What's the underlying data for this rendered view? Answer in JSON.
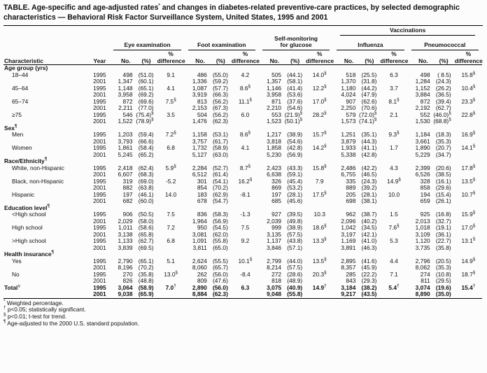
{
  "title": "TABLE. Age-specific and age-adjusted rates* and changes in diabetes-related preventive-care practices, by selected demographic characteristics — Behavioral Risk Factor Surveillance System, United States, 1995 and 2001",
  "header": {
    "characteristic": "Characteristic",
    "year": "Year",
    "no": "No.",
    "pct": "(%)",
    "pct_word": "%",
    "difference": "difference",
    "vaccinations": "Vaccinations",
    "groups": [
      "Eye examination",
      "Foot examination",
      "Self-monitoring\nfor glucose",
      "Influenza",
      "Pneumococcal"
    ]
  },
  "years": [
    "1995",
    "2001"
  ],
  "sections": [
    {
      "header": "Age group (yrs)",
      "rows": [
        {
          "label": "18–44",
          "bold": false,
          "y1995": [
            "498",
            "(51.0)",
            "9.1",
            "486",
            "(55.0)",
            "4.2",
            "505",
            "(44.1)",
            "14.0§",
            "518",
            "(25.5)",
            "6.3",
            "498",
            "( 8.5)",
            "15.8§"
          ],
          "y2001": [
            "1,347",
            "(60.1)",
            "",
            "1,336",
            "(59.2)",
            "",
            "1,357",
            "(58.1)",
            "",
            "1,370",
            "(31.8)",
            "",
            "1,284",
            "(24.3)",
            ""
          ]
        },
        {
          "label": "45–64",
          "bold": false,
          "y1995": [
            "1,148",
            "(65.1)",
            "4.1",
            "1,087",
            "(57.7)",
            "8.6§",
            "1,146",
            "(41.4)",
            "12.2§",
            "1,180",
            "(44.2)",
            "3.7",
            "1,152",
            "(26.2)",
            "10.4§"
          ],
          "y2001": [
            "3,958",
            "(69.2)",
            "",
            "3,919",
            "(66.3)",
            "",
            "3,958",
            "(53.6)",
            "",
            "4,024",
            "(47.9)",
            "",
            "3,884",
            "(36.5)",
            ""
          ]
        },
        {
          "label": "65–74",
          "bold": false,
          "y1995": [
            "872",
            "(69.6)",
            "7.5§",
            "813",
            "(56.2)",
            "11.1§",
            "871",
            "(37.6)",
            "17.0§",
            "907",
            "(62.6)",
            "8.1§",
            "872",
            "(39.4)",
            "23.3§"
          ],
          "y2001": [
            "2,211",
            "(77.0)",
            "",
            "2,153",
            "(67.3)",
            "",
            "2,210",
            "(54.6)",
            "",
            "2,250",
            "(70.6)",
            "",
            "2,192",
            "(62.7)",
            ""
          ]
        },
        {
          "label": "≥75",
          "bold": false,
          "y1995": [
            "546",
            "(75.4)§",
            "3.5",
            "504",
            "(56.2)",
            "6.0",
            "553",
            "(21.9)§",
            "28.2§",
            "579",
            "(72.0)§",
            "2.1",
            "552",
            "(46.0)§",
            "22.8§"
          ],
          "y2001": [
            "1,522",
            "(78.9)§",
            "",
            "1,476",
            "(62.3)",
            "",
            "1,523",
            "(50.1)§",
            "",
            "1,573",
            "(74.1)§",
            "",
            "1,530",
            "(68.8)§",
            ""
          ]
        }
      ]
    },
    {
      "header": "Sex¶",
      "rows": [
        {
          "label": "Men",
          "bold": false,
          "y1995": [
            "1,203",
            "(59.4)",
            "7.2§",
            "1,158",
            "(53.1)",
            "8.6§",
            "1,217",
            "(38.9)",
            "15.7§",
            "1,251",
            "(35.1)",
            "9.3§",
            "1,184",
            "(18.3)",
            "16.9§"
          ],
          "y2001": [
            "3,793",
            "(66.6)",
            "",
            "3,757",
            "(61.7)",
            "",
            "3,818",
            "(54.6)",
            "",
            "3,879",
            "(44.3)",
            "",
            "3,661",
            "(35.3)",
            ""
          ]
        },
        {
          "label": "Women",
          "bold": false,
          "y1995": [
            "1,861",
            "(58.4)",
            "6.8",
            "1,732",
            "(58.9)",
            "4.1",
            "1,858",
            "(42.8)",
            "14.2§",
            "1,933",
            "(41.1)",
            "1.7",
            "1,890",
            "(20.7)",
            "14.1§"
          ],
          "y2001": [
            "5,245",
            "(65.2)",
            "",
            "5,127",
            "(63.0)",
            "",
            "5,230",
            "(56.9)",
            "",
            "5,338",
            "(42.8)",
            "",
            "5,229",
            "(34.7)",
            ""
          ]
        }
      ]
    },
    {
      "header": "Race/Ethnicity¶",
      "rows": [
        {
          "label": "White, non-Hispanic",
          "bold": false,
          "y1995": [
            "2,418",
            "(62.4)",
            "5.9§",
            "2,284",
            "(52.7)",
            "8.7§",
            "2,423",
            "(43.3)",
            "15.8§",
            "2,486",
            "(42.2)",
            "4.3",
            "2,399",
            "(20.6)",
            "17.8§"
          ],
          "y2001": [
            "6,607",
            "(68.3)",
            "",
            "6,512",
            "(61.4)",
            "",
            "6,638",
            "(59.1)",
            "",
            "6,755",
            "(46.5)",
            "",
            "6,526",
            "(38.5)",
            ""
          ]
        },
        {
          "label": "Black, non-Hispanic",
          "bold": false,
          "y1995": [
            "319",
            "(69.0)",
            "-5.2",
            "301",
            "(54.1)",
            "16.2§",
            "326",
            "(45.4)",
            "7.9",
            "335",
            "(24.3)",
            "14.9§",
            "328",
            "(16.1)",
            "13.5§"
          ],
          "y2001": [
            "882",
            "(63.8)",
            "",
            "854",
            "(70.2)",
            "",
            "869",
            "(53.2)",
            "",
            "889",
            "(39.2)",
            "",
            "858",
            "(29.6)",
            ""
          ]
        },
        {
          "label": "Hispanic",
          "bold": false,
          "y1995": [
            "197",
            "(46.1)",
            "14.0",
            "183",
            "(62.9)",
            "-8.1",
            "197",
            "(28.1)",
            "17.5§",
            "205",
            "(28.1)",
            "10.0",
            "194",
            "(15.4)",
            "10.7§"
          ],
          "y2001": [
            "682",
            "(60.0)",
            "",
            "678",
            "(54.7)",
            "",
            "685",
            "(45.6)",
            "",
            "698",
            "(38.1)",
            "",
            "659",
            "(26.1)",
            ""
          ]
        }
      ]
    },
    {
      "header": "Education level¶",
      "rows": [
        {
          "label": "<High school",
          "bold": false,
          "y1995": [
            "906",
            "(50.5)",
            "7.5",
            "836",
            "(58.3)",
            "-1.3",
            "927",
            "(39.5)",
            "10.3",
            "962",
            "(38.7)",
            "1.5",
            "925",
            "(16.8)",
            "15.9§"
          ],
          "y2001": [
            "2,029",
            "(58.0)",
            "",
            "1,964",
            "(56.9)",
            "",
            "2,039",
            "(49.8)",
            "",
            "2,096",
            "(40.2)",
            "",
            "2,013",
            "(32.7)",
            ""
          ]
        },
        {
          "label": "High school",
          "bold": false,
          "y1995": [
            "1,011",
            "(58.6)",
            "7.2",
            "950",
            "(54.5)",
            "7.5",
            "999",
            "(38.9)",
            "18.6§",
            "1,042",
            "(34.5)",
            "7.6§",
            "1,018",
            "(19.1)",
            "17.0§"
          ],
          "y2001": [
            "3,138",
            "(65.8)",
            "",
            "3,081",
            "(62.0)",
            "",
            "3,135",
            "(57.5)",
            "",
            "3,197",
            "(42.1)",
            "",
            "3,109",
            "(36.1)",
            ""
          ]
        },
        {
          "label": ">High school",
          "bold": false,
          "y1995": [
            "1,133",
            "(62.7)",
            "6.8",
            "1,091",
            "(55.8)",
            "9.2",
            "1,137",
            "(43.8)",
            "13.3§",
            "1,169",
            "(41.0)",
            "5.3",
            "1,120",
            "(22.7)",
            "13.1§"
          ],
          "y2001": [
            "3,839",
            "(69.5)",
            "",
            "3,811",
            "(65.0)",
            "",
            "3,846",
            "(57.1)",
            "",
            "3,891",
            "(46.3)",
            "",
            "3,735",
            "(35.8)",
            ""
          ]
        }
      ]
    },
    {
      "header": "Health insurance¶",
      "rows": [
        {
          "label": "Yes",
          "bold": false,
          "y1995": [
            "2,790",
            "(65.1)",
            "5.1",
            "2,624",
            "(55.5)",
            "10.1§",
            "2,799",
            "(44.0)",
            "13.5§",
            "2,895",
            "(41.6)",
            "4.4",
            "2,796",
            "(20.5)",
            "14.9§"
          ],
          "y2001": [
            "8,196",
            "(70.2)",
            "",
            "8,060",
            "(65.7)",
            "",
            "8,214",
            "(57.5)",
            "",
            "8,357",
            "(45.9)",
            "",
            "8,062",
            "(35.3)",
            ""
          ]
        },
        {
          "label": "No",
          "bold": false,
          "y1995": [
            "270",
            "(35.8)",
            "13.0§",
            "262",
            "(56.0)",
            "-8.4",
            "272",
            "(28.6)",
            "20.3§",
            "285",
            "(22.2)",
            "7.1",
            "274",
            "(10.8)",
            "18.7§"
          ],
          "y2001": [
            "826",
            "(48.8)",
            "",
            "809",
            "(47.6)",
            "",
            "818",
            "(48.9)",
            "",
            "843",
            "(29.3)",
            "",
            "811",
            "(29.5)",
            ""
          ]
        }
      ]
    },
    {
      "header": null,
      "rows": [
        {
          "label": "Total¶",
          "bold": true,
          "y1995": [
            "3,064",
            "(58.9)",
            "7.0†",
            "2,890",
            "(56.0)",
            "6.3",
            "3,075",
            "(40.9)",
            "14.9†",
            "3,184",
            "(38.2)",
            "5.4†",
            "3,074",
            "(19.6)",
            "15.4†"
          ],
          "y2001": [
            "9,038",
            "(65.9)",
            "",
            "8,884",
            "(62.3)",
            "",
            "9,048",
            "(55.8)",
            "",
            "9,217",
            "(43.5)",
            "",
            "8,890",
            "(35.0)",
            ""
          ]
        }
      ]
    }
  ],
  "footnotes": [
    "* Weighted percentage.",
    "† p<0.05; statistically significant.",
    "§ p<0.01; t-test for trend.",
    "¶ Age-adjusted to the 2000 U.S. standard population."
  ]
}
